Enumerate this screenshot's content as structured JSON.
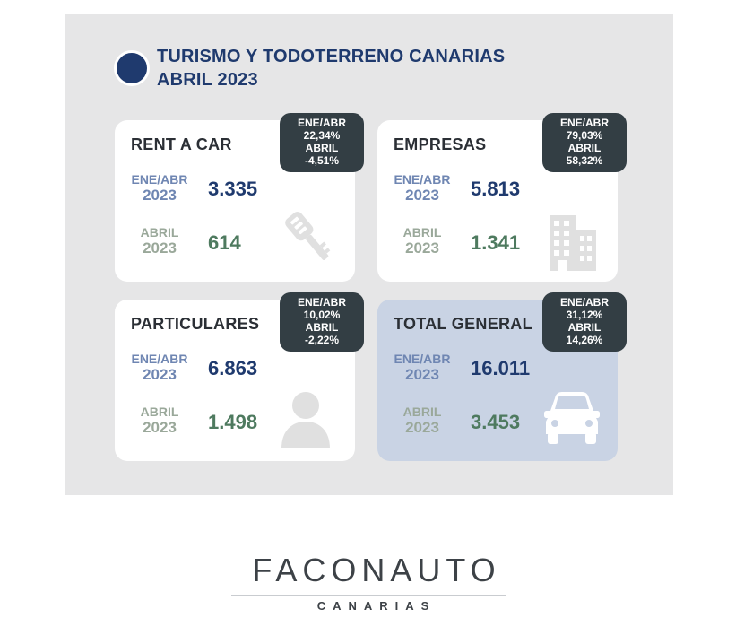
{
  "header": {
    "title_line1": "TURISMO Y TODOTERRENO CANARIAS",
    "title_line2": "ABRIL 2023"
  },
  "cards": [
    {
      "title": "RENT A CAR",
      "badge": [
        "ENE/ABR",
        "22,34%",
        "ABRIL",
        "-4,51%"
      ],
      "period_enea": "ENE/ABR",
      "year_enea": "2023",
      "value_enea": "3.335",
      "period_abril": "ABRIL",
      "year_abril": "2023",
      "value_abril": "614",
      "icon": "car-key-icon"
    },
    {
      "title": "EMPRESAS",
      "badge": [
        "ENE/ABR",
        "79,03%",
        "ABRIL",
        "58,32%"
      ],
      "period_enea": "ENE/ABR",
      "year_enea": "2023",
      "value_enea": "5.813",
      "period_abril": "ABRIL",
      "year_abril": "2023",
      "value_abril": "1.341",
      "icon": "building-icon"
    },
    {
      "title": "PARTICULARES",
      "badge": [
        "ENE/ABR",
        "10,02%",
        "ABRIL",
        "-2,22%"
      ],
      "period_enea": "ENE/ABR",
      "year_enea": "2023",
      "value_enea": "6.863",
      "period_abril": "ABRIL",
      "year_abril": "2023",
      "value_abril": "1.498",
      "icon": "person-icon"
    },
    {
      "title": "TOTAL GENERAL",
      "badge": [
        "ENE/ABR",
        "31,12%",
        "ABRIL",
        "14,26%"
      ],
      "period_enea": "ENE/ABR",
      "year_enea": "2023",
      "value_enea": "16.011",
      "period_abril": "ABRIL",
      "year_abril": "2023",
      "value_abril": "3.453",
      "icon": "car-icon"
    }
  ],
  "footer": {
    "brand": "FACONAUTO",
    "region": "CANARIAS"
  },
  "colors": {
    "navy": "#1f3a6e",
    "green": "#4e7a5f",
    "badge": "#333e44",
    "highlight_card": "#c9d3e4"
  }
}
